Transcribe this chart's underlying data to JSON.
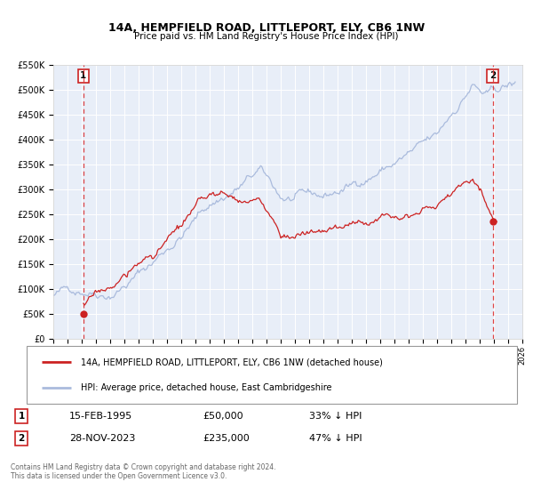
{
  "title": "14A, HEMPFIELD ROAD, LITTLEPORT, ELY, CB6 1NW",
  "subtitle": "Price paid vs. HM Land Registry's House Price Index (HPI)",
  "xlim_left": 1993.0,
  "xlim_right": 2026.0,
  "ylim_bottom": 0,
  "ylim_top": 550000,
  "yticks": [
    0,
    50000,
    100000,
    150000,
    200000,
    250000,
    300000,
    350000,
    400000,
    450000,
    500000,
    550000
  ],
  "ytick_labels": [
    "£0",
    "£50K",
    "£100K",
    "£150K",
    "£200K",
    "£250K",
    "£300K",
    "£350K",
    "£400K",
    "£450K",
    "£500K",
    "£550K"
  ],
  "xticks": [
    1993,
    1994,
    1995,
    1996,
    1997,
    1998,
    1999,
    2000,
    2001,
    2002,
    2003,
    2004,
    2005,
    2006,
    2007,
    2008,
    2009,
    2010,
    2011,
    2012,
    2013,
    2014,
    2015,
    2016,
    2017,
    2018,
    2019,
    2020,
    2021,
    2022,
    2023,
    2024,
    2025,
    2026
  ],
  "hpi_color": "#aabbdd",
  "price_color": "#cc2222",
  "dashed_line_color": "#dd3333",
  "point1_x": 1995.12,
  "point1_y": 50000,
  "point2_x": 2023.91,
  "point2_y": 235000,
  "label1": "1",
  "label2": "2",
  "legend_line1": "14A, HEMPFIELD ROAD, LITTLEPORT, ELY, CB6 1NW (detached house)",
  "legend_line2": "HPI: Average price, detached house, East Cambridgeshire",
  "annotation1_date": "15-FEB-1995",
  "annotation1_price": "£50,000",
  "annotation1_hpi": "33% ↓ HPI",
  "annotation2_date": "28-NOV-2023",
  "annotation2_price": "£235,000",
  "annotation2_hpi": "47% ↓ HPI",
  "footnote": "Contains HM Land Registry data © Crown copyright and database right 2024.\nThis data is licensed under the Open Government Licence v3.0.",
  "bg_color": "#e8eef8",
  "fig_bg": "#ffffff"
}
